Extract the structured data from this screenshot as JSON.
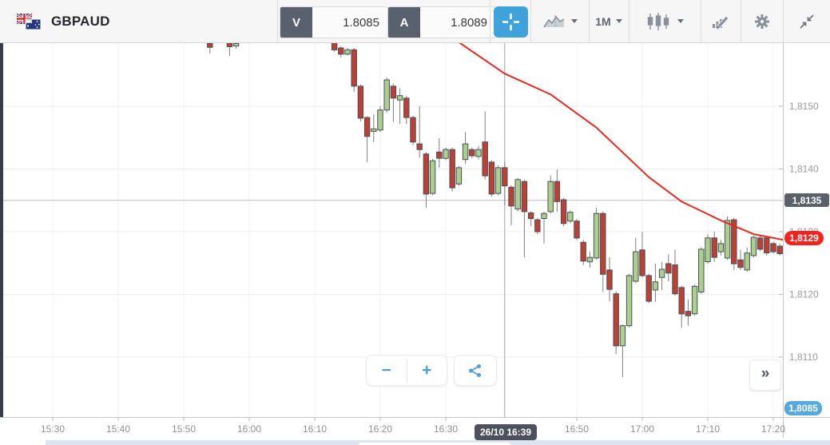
{
  "header": {
    "symbol": "GBPAUD",
    "sell_label": "V",
    "sell_value": "1.8085",
    "buy_label": "A",
    "buy_value": "1.8089",
    "timeframe_label": "1M",
    "accent_blue": "#3fa2da",
    "icons": [
      "gbp-aud-flag",
      "crosshair",
      "chart-type",
      "candlestick-style",
      "drawing-tools",
      "settings-gear",
      "collapse-chart"
    ]
  },
  "controls": {
    "zoom_out": "−",
    "zoom_in": "+",
    "expand": "»",
    "share_icon": "share"
  },
  "chart_data": {
    "type": "candlestick",
    "symbol": "GBPAUD",
    "interval": "1M",
    "grid": true,
    "ylim": [
      1.81004,
      1.81601
    ],
    "xlim": [
      "15:22",
      "17:22"
    ],
    "y_axis": {
      "side": "right",
      "tick_labels": [
        "1,8150",
        "1,8140",
        "1,8130",
        "1,8120",
        "1,8110"
      ],
      "tick_prices": [
        1.815,
        1.814,
        1.813,
        1.812,
        1.811
      ]
    },
    "x_axis": {
      "tick_labels": [
        "15:30",
        "15:40",
        "15:50",
        "16:00",
        "16:10",
        "16:20",
        "16:30",
        "16:50",
        "17:00",
        "17:10",
        "17:20"
      ]
    },
    "crosshair": {
      "time": "16:39",
      "time_label": "26/10 16:39",
      "price": 1.8135,
      "price_label": "1,8135"
    },
    "last_price": {
      "value": 1.8129,
      "label": "1,8129",
      "color": "#f3241f"
    },
    "sell_marker": {
      "value": 1.8085,
      "label": "1,8085",
      "color": "#55a9dc",
      "clamped_to_bottom": true
    },
    "candle_colors": {
      "up_fill": "#abd08e",
      "down_fill": "#bc4034",
      "outline": "#474e57",
      "wick": "#7d7d7d"
    },
    "candles_format": [
      "time",
      "open",
      "high",
      "low",
      "close"
    ],
    "candles": [
      [
        "15:54",
        1.816,
        1.81606,
        1.81584,
        1.81594
      ],
      [
        "15:57",
        1.81601,
        1.81604,
        1.8158,
        1.81595
      ],
      [
        "15:58",
        1.81596,
        1.81603,
        1.81592,
        1.816
      ],
      [
        "16:13",
        1.81613,
        1.81616,
        1.81587,
        1.8159
      ],
      [
        "16:14",
        1.81593,
        1.81596,
        1.81578,
        1.81583
      ],
      [
        "16:15",
        1.81583,
        1.81593,
        1.81581,
        1.8159
      ],
      [
        "16:16",
        1.8159,
        1.81593,
        1.81523,
        1.81532
      ],
      [
        "16:17",
        1.81532,
        1.81535,
        1.81476,
        1.81481
      ],
      [
        "16:18",
        1.81482,
        1.81484,
        1.81411,
        1.81452
      ],
      [
        "16:19",
        1.8146,
        1.81487,
        1.81443,
        1.81464
      ],
      [
        "16:20",
        1.81462,
        1.815,
        1.81459,
        1.81494
      ],
      [
        "16:21",
        1.81494,
        1.81546,
        1.8149,
        1.81542
      ],
      [
        "16:22",
        1.81532,
        1.81536,
        1.81475,
        1.81513
      ],
      [
        "16:23",
        1.8151,
        1.81529,
        1.81472,
        1.81517
      ],
      [
        "16:24",
        1.81513,
        1.81517,
        1.81472,
        1.81482
      ],
      [
        "16:25",
        1.81482,
        1.81485,
        1.81438,
        1.81443
      ],
      [
        "16:26",
        1.8144,
        1.815,
        1.81418,
        1.81431
      ],
      [
        "16:27",
        1.81424,
        1.81427,
        1.81338,
        1.8136
      ],
      [
        "16:28",
        1.81361,
        1.81416,
        1.81358,
        1.81413
      ],
      [
        "16:29",
        1.81427,
        1.81449,
        1.81402,
        1.81417
      ],
      [
        "16:30",
        1.81417,
        1.81434,
        1.81414,
        1.81431
      ],
      [
        "16:31",
        1.81431,
        1.81434,
        1.81364,
        1.8137
      ],
      [
        "16:32",
        1.81376,
        1.81405,
        1.81373,
        1.81402
      ],
      [
        "16:33",
        1.81415,
        1.81459,
        1.81408,
        1.8144
      ],
      [
        "16:34",
        1.81431,
        1.81434,
        1.81417,
        1.81421
      ],
      [
        "16:35",
        1.8142,
        1.81437,
        1.81415,
        1.81431
      ],
      [
        "16:36",
        1.81443,
        1.81492,
        1.81383,
        1.81389
      ],
      [
        "16:37",
        1.81411,
        1.81414,
        1.81356,
        1.8136
      ],
      [
        "16:38",
        1.81361,
        1.81406,
        1.81358,
        1.81402
      ],
      [
        "16:39",
        1.81402,
        1.81411,
        1.81342,
        1.81373
      ],
      [
        "16:40",
        1.81371,
        1.81374,
        1.8131,
        1.81341
      ],
      [
        "16:41",
        1.81336,
        1.81386,
        1.81332,
        1.81383
      ],
      [
        "16:42",
        1.8138,
        1.81383,
        1.81259,
        1.81332
      ],
      [
        "16:43",
        1.8133,
        1.81333,
        1.81309,
        1.81321
      ],
      [
        "16:44",
        1.81319,
        1.81322,
        1.81296,
        1.813
      ],
      [
        "16:45",
        1.81321,
        1.81332,
        1.81281,
        1.81329
      ],
      [
        "16:46",
        1.81332,
        1.8139,
        1.81329,
        1.8138
      ],
      [
        "16:47",
        1.8138,
        1.81399,
        1.81332,
        1.81348
      ],
      [
        "16:48",
        1.81351,
        1.81354,
        1.81309,
        1.81313
      ],
      [
        "16:49",
        1.81317,
        1.81334,
        1.81313,
        1.81331
      ],
      [
        "16:50",
        1.81317,
        1.8132,
        1.81287,
        1.8129
      ],
      [
        "16:51",
        1.81283,
        1.81287,
        1.81247,
        1.81253
      ],
      [
        "16:52",
        1.81252,
        1.81268,
        1.81243,
        1.81259
      ],
      [
        "16:53",
        1.81258,
        1.81338,
        1.81255,
        1.81329
      ],
      [
        "16:54",
        1.81329,
        1.81332,
        1.81204,
        1.81232
      ],
      [
        "16:55",
        1.81239,
        1.81259,
        1.81189,
        1.81208
      ],
      [
        "16:56",
        1.81201,
        1.81205,
        1.81105,
        1.81118
      ],
      [
        "16:57",
        1.81118,
        1.81152,
        1.81068,
        1.8115
      ],
      [
        "16:58",
        1.8115,
        1.81233,
        1.81147,
        1.8123
      ],
      [
        "16:59",
        1.81221,
        1.8129,
        1.81218,
        1.81268
      ],
      [
        "17:00",
        1.81271,
        1.813,
        1.81227,
        1.8123
      ],
      [
        "17:01",
        1.8123,
        1.81233,
        1.81186,
        1.81189
      ],
      [
        "17:02",
        1.81207,
        1.81249,
        1.81188,
        1.8122
      ],
      [
        "17:03",
        1.81227,
        1.81252,
        1.81207,
        1.8124
      ],
      [
        "17:04",
        1.81249,
        1.81264,
        1.81221,
        1.81234
      ],
      [
        "17:05",
        1.81247,
        1.81271,
        1.81198,
        1.81201
      ],
      [
        "17:06",
        1.81211,
        1.81214,
        1.81147,
        1.81169
      ],
      [
        "17:07",
        1.81173,
        1.81192,
        1.8115,
        1.81166
      ],
      [
        "17:08",
        1.81169,
        1.81216,
        1.81166,
        1.81213
      ],
      [
        "17:09",
        1.81204,
        1.81275,
        1.81201,
        1.81272
      ],
      [
        "17:10",
        1.81252,
        1.81296,
        1.81249,
        1.8129
      ],
      [
        "17:11",
        1.8129,
        1.813,
        1.81252,
        1.81259
      ],
      [
        "17:12",
        1.81268,
        1.81287,
        1.81262,
        1.81281
      ],
      [
        "17:13",
        1.81258,
        1.81324,
        1.81255,
        1.81318
      ],
      [
        "17:14",
        1.81319,
        1.81322,
        1.81239,
        1.81249
      ],
      [
        "17:15",
        1.81255,
        1.81271,
        1.81239,
        1.81243
      ],
      [
        "17:16",
        1.81239,
        1.81275,
        1.81236,
        1.81266
      ],
      [
        "17:17",
        1.81262,
        1.81294,
        1.81259,
        1.81291
      ],
      [
        "17:18",
        1.8129,
        1.81293,
        1.81269,
        1.81272
      ],
      [
        "17:19",
        1.8129,
        1.81293,
        1.81262,
        1.81266
      ],
      [
        "17:20",
        1.81281,
        1.81284,
        1.81265,
        1.81268
      ],
      [
        "17:21",
        1.81277,
        1.81281,
        1.81262,
        1.81265
      ],
      [
        "17:22",
        1.81272,
        1.81334,
        1.81269,
        1.81329
      ]
    ],
    "ma_line": {
      "name": "moving-average",
      "color": "#ea2820",
      "points": [
        [
          "16:32",
          1.81602
        ],
        [
          "16:39",
          1.81552
        ],
        [
          "16:46",
          1.81519
        ],
        [
          "16:53",
          1.81466
        ],
        [
          "17:01",
          1.81387
        ],
        [
          "17:06",
          1.81348
        ],
        [
          "17:12",
          1.81318
        ],
        [
          "17:17",
          1.81296
        ],
        [
          "17:22",
          1.81286
        ]
      ]
    }
  }
}
